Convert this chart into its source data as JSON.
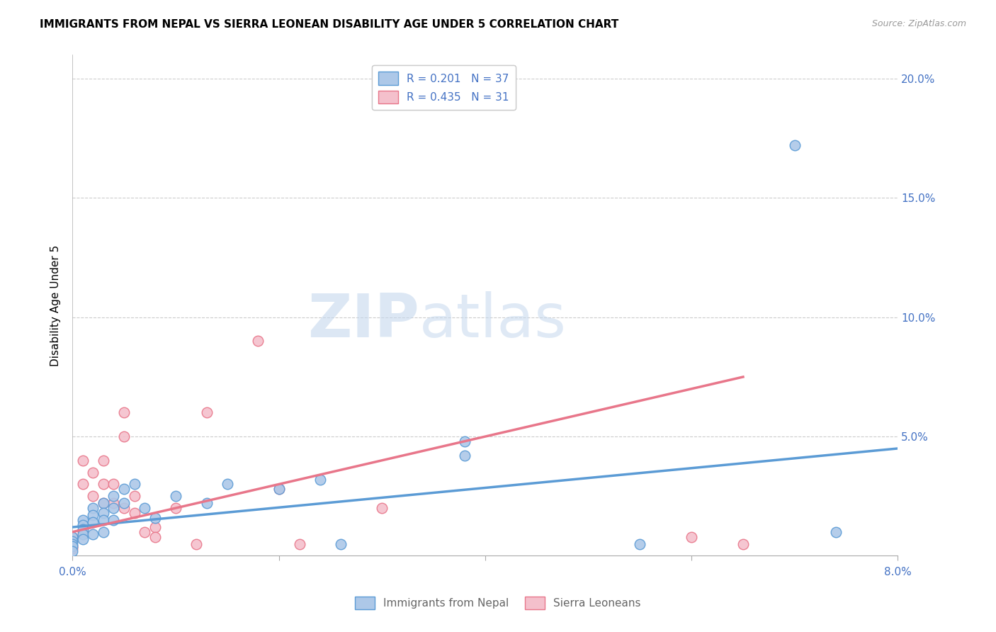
{
  "title": "IMMIGRANTS FROM NEPAL VS SIERRA LEONEAN DISABILITY AGE UNDER 5 CORRELATION CHART",
  "source": "Source: ZipAtlas.com",
  "ylabel": "Disability Age Under 5",
  "watermark_zip": "ZIP",
  "watermark_atlas": "atlas",
  "ytick_values": [
    0.0,
    0.05,
    0.1,
    0.15,
    0.2
  ],
  "ytick_labels": [
    "",
    "5.0%",
    "10.0%",
    "15.0%",
    "20.0%"
  ],
  "xtick_values": [
    0.0,
    0.02,
    0.04,
    0.06,
    0.08
  ],
  "xtick_labels": [
    "0.0%",
    "",
    "",
    "",
    "8.0%"
  ],
  "xlim": [
    0.0,
    0.08
  ],
  "ylim": [
    0.0,
    0.21
  ],
  "blue_scatter_x": [
    0.0,
    0.0,
    0.0,
    0.0,
    0.0,
    0.001,
    0.001,
    0.001,
    0.001,
    0.001,
    0.002,
    0.002,
    0.002,
    0.002,
    0.003,
    0.003,
    0.003,
    0.003,
    0.004,
    0.004,
    0.004,
    0.005,
    0.005,
    0.006,
    0.007,
    0.008,
    0.01,
    0.013,
    0.015,
    0.02,
    0.024,
    0.026,
    0.038,
    0.038,
    0.055,
    0.07,
    0.074
  ],
  "blue_scatter_y": [
    0.008,
    0.006,
    0.005,
    0.004,
    0.002,
    0.015,
    0.013,
    0.011,
    0.009,
    0.007,
    0.02,
    0.017,
    0.014,
    0.009,
    0.022,
    0.018,
    0.015,
    0.01,
    0.025,
    0.02,
    0.015,
    0.028,
    0.022,
    0.03,
    0.02,
    0.016,
    0.025,
    0.022,
    0.03,
    0.028,
    0.032,
    0.005,
    0.048,
    0.042,
    0.005,
    0.172,
    0.01
  ],
  "pink_scatter_x": [
    0.0,
    0.0,
    0.0,
    0.0,
    0.001,
    0.001,
    0.001,
    0.002,
    0.002,
    0.003,
    0.003,
    0.003,
    0.004,
    0.004,
    0.005,
    0.005,
    0.005,
    0.006,
    0.006,
    0.007,
    0.008,
    0.008,
    0.01,
    0.012,
    0.013,
    0.018,
    0.02,
    0.022,
    0.03,
    0.06,
    0.065
  ],
  "pink_scatter_y": [
    0.008,
    0.006,
    0.004,
    0.003,
    0.04,
    0.03,
    0.01,
    0.035,
    0.025,
    0.04,
    0.03,
    0.022,
    0.03,
    0.022,
    0.06,
    0.05,
    0.02,
    0.025,
    0.018,
    0.01,
    0.012,
    0.008,
    0.02,
    0.005,
    0.06,
    0.09,
    0.028,
    0.005,
    0.02,
    0.008,
    0.005
  ],
  "blue_line_x": [
    0.0,
    0.08
  ],
  "blue_line_y": [
    0.012,
    0.045
  ],
  "pink_line_x": [
    0.0,
    0.065
  ],
  "pink_line_y": [
    0.01,
    0.075
  ],
  "blue_color": "#5b9bd5",
  "pink_color": "#e8768a",
  "blue_fill": "#adc8e8",
  "pink_fill": "#f4c0cc",
  "grid_color": "#cccccc",
  "legend1_label_r": "R = 0.201",
  "legend1_label_n": "N = 37",
  "legend2_label_r": "R = 0.435",
  "legend2_label_n": "N = 31",
  "legend_bottom_blue": "Immigrants from Nepal",
  "legend_bottom_pink": "Sierra Leoneans",
  "tick_color": "#4472c4",
  "title_fontsize": 11,
  "source_fontsize": 9,
  "tick_fontsize": 11
}
